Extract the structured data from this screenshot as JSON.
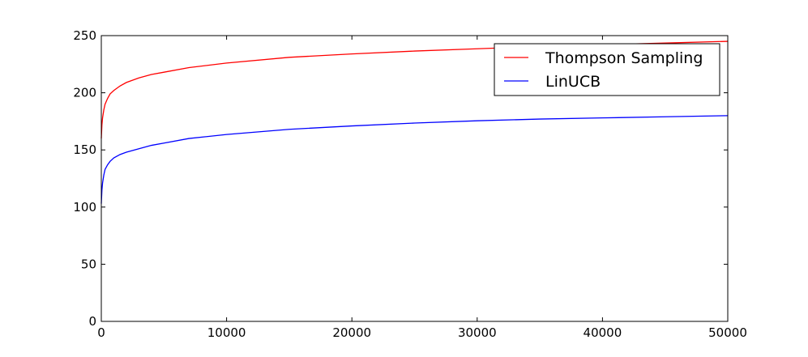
{
  "chart_data": {
    "type": "line",
    "title": "",
    "xlabel": "",
    "ylabel": "",
    "xlim": [
      0,
      50000
    ],
    "ylim": [
      0,
      250
    ],
    "x_ticks": [
      0,
      10000,
      20000,
      30000,
      40000,
      50000
    ],
    "x_tick_labels": [
      "0",
      "10000",
      "20000",
      "30000",
      "40000",
      "50000"
    ],
    "y_ticks": [
      0,
      50,
      100,
      150,
      200,
      250
    ],
    "y_tick_labels": [
      "0",
      "50",
      "100",
      "150",
      "200",
      "250"
    ],
    "grid": false,
    "legend_position": "top-right",
    "series": [
      {
        "name": "Thompson Sampling",
        "color": "#ff0000",
        "x": [
          0,
          50,
          100,
          200,
          300,
          500,
          700,
          1000,
          1500,
          2000,
          3000,
          4000,
          5000,
          7000,
          10000,
          15000,
          20000,
          25000,
          30000,
          35000,
          40000,
          45000,
          50000
        ],
        "y": [
          160,
          172,
          178,
          185,
          190,
          195,
          199,
          202,
          206,
          209,
          213,
          216,
          218,
          222,
          226,
          231,
          234,
          236.5,
          238.5,
          240.5,
          242,
          243.5,
          245
        ]
      },
      {
        "name": "LinUCB",
        "color": "#0000ff",
        "x": [
          0,
          50,
          100,
          200,
          300,
          500,
          700,
          1000,
          1500,
          2000,
          3000,
          4000,
          5000,
          7000,
          10000,
          15000,
          20000,
          25000,
          30000,
          35000,
          40000,
          45000,
          50000
        ],
        "y": [
          103,
          115,
          121,
          128,
          133,
          137,
          140,
          143,
          146,
          148,
          151,
          154,
          156,
          160,
          163.5,
          168,
          171,
          173.5,
          175.5,
          177,
          178,
          179,
          180
        ]
      }
    ]
  }
}
